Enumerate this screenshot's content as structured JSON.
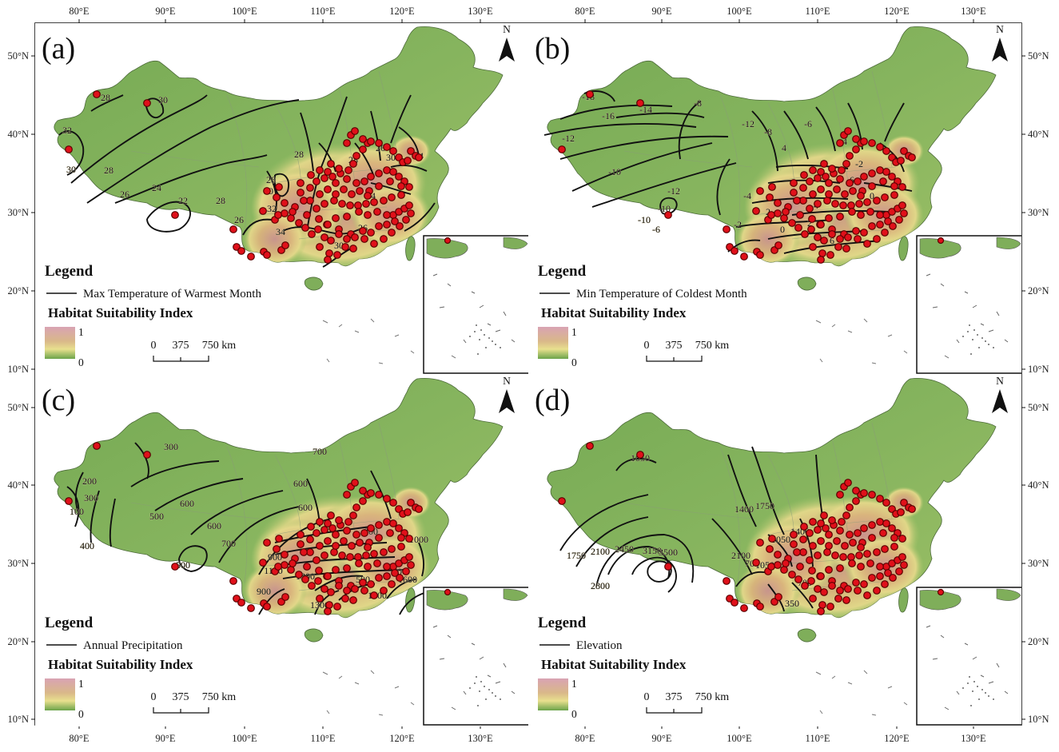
{
  "figure": {
    "lon_ticks": [
      "80°E",
      "90°E",
      "100°E",
      "110°E",
      "120°E",
      "130°E"
    ],
    "lat_ticks": [
      "50°N",
      "40°N",
      "30°N",
      "20°N",
      "10°N"
    ],
    "north_label": "N",
    "legend_title": "Legend",
    "hsi_title": "Habitat Suitability Index",
    "hsi_max": "1",
    "hsi_min": "0",
    "scale_labels": [
      "0",
      "375",
      "750 km"
    ],
    "colors": {
      "low": "#6ba34a",
      "mid": "#e6dc8c",
      "high": "#cfa0a8",
      "background_green": "#7fae5a",
      "occurrence": "#e0101a"
    },
    "icon_names": [
      "north-arrow-icon"
    ]
  },
  "panels": [
    {
      "id": "a",
      "label": "(a)",
      "legend_item": "Max Temperature of Warmest Month",
      "contour_labels": [
        "28",
        "30",
        "32",
        "30",
        "28",
        "26",
        "22",
        "24",
        "28",
        "26",
        "28",
        "30",
        "32",
        "34",
        "30",
        "26",
        "24",
        "28",
        "26",
        "30",
        "34",
        "28"
      ]
    },
    {
      "id": "b",
      "label": "(b)",
      "legend_item": "Min Temperature of Coldest Month",
      "contour_labels": [
        "-18",
        "-16",
        "-14",
        "-12",
        "-10",
        "-8",
        "-10",
        "-12",
        "-6",
        "-10",
        "-12",
        "-8",
        "-6",
        "-4",
        "-2",
        "0",
        "2",
        "4",
        "6",
        "-4",
        "-2",
        "2",
        "4",
        "6",
        "0"
      ]
    },
    {
      "id": "c",
      "label": "(c)",
      "legend_item": "Annual Precipitation",
      "contour_labels": [
        "300",
        "200",
        "100",
        "300",
        "400",
        "500",
        "600",
        "500",
        "600",
        "700",
        "600",
        "900",
        "800",
        "1100",
        "1300",
        "500",
        "400",
        "1000",
        "1500",
        "1600",
        "700",
        "600",
        "900",
        "1300"
      ]
    },
    {
      "id": "d",
      "label": "(d)",
      "legend_item": "Elevation",
      "contour_labels": [
        "1050",
        "1750",
        "2100",
        "2450",
        "3150",
        "3500",
        "2800",
        "1400",
        "1750",
        "2100",
        "700",
        "1050",
        "1400",
        "1050",
        "700",
        "350"
      ]
    }
  ]
}
